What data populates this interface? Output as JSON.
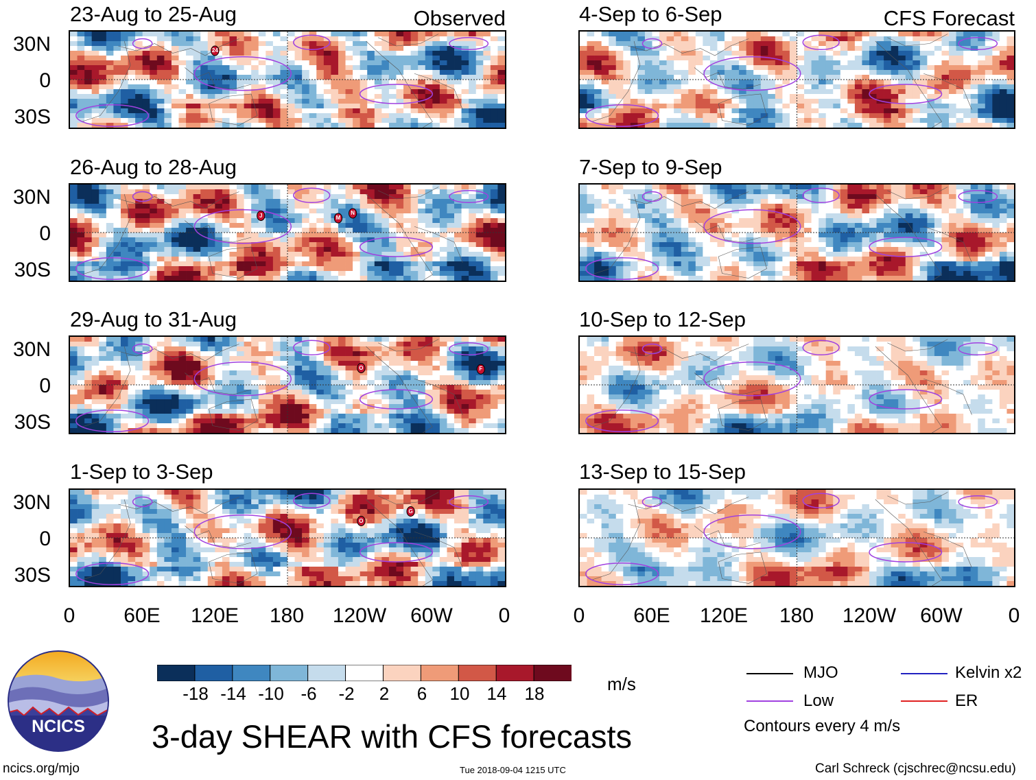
{
  "panels": [
    {
      "title": "23-Aug to 25-Aug",
      "label": "Observed",
      "storms": [
        {
          "name": "24",
          "lon": 120,
          "lat": 24
        }
      ]
    },
    {
      "title": "26-Aug to 28-Aug",
      "label": "",
      "storms": [
        {
          "name": "J",
          "lon": 158,
          "lat": 14
        },
        {
          "name": "M",
          "lon": 222,
          "lat": 12
        },
        {
          "name": "N",
          "lon": 234,
          "lat": 16
        }
      ]
    },
    {
      "title": "29-Aug to 31-Aug",
      "label": "",
      "storms": [
        {
          "name": "O",
          "lon": 241,
          "lat": 14
        },
        {
          "name": "F",
          "lon": 340,
          "lat": 13
        }
      ]
    },
    {
      "title": "1-Sep to 3-Sep",
      "label": "",
      "storms": [
        {
          "name": "O",
          "lon": 241,
          "lat": 14
        },
        {
          "name": "G",
          "lon": 282,
          "lat": 22
        }
      ]
    },
    {
      "title": "4-Sep to 6-Sep",
      "label": "CFS Forecast",
      "storms": []
    },
    {
      "title": "7-Sep to 9-Sep",
      "label": "",
      "storms": []
    },
    {
      "title": "10-Sep to 12-Sep",
      "label": "",
      "storms": []
    },
    {
      "title": "13-Sep to 15-Sep",
      "label": "",
      "storms": []
    }
  ],
  "axis": {
    "lat_ticks": [
      "30N",
      "0",
      "30S"
    ],
    "lon_ticks": [
      "0",
      "60E",
      "120E",
      "180",
      "120W",
      "60W",
      "0"
    ]
  },
  "colorbar": {
    "ticks": [
      "-18",
      "-14",
      "-10",
      "-6",
      "-2",
      "2",
      "6",
      "10",
      "14",
      "18"
    ],
    "colors": [
      "#0b2f5a",
      "#1f5fa3",
      "#3f87c0",
      "#7fb6d8",
      "#c5dcec",
      "#ffffff",
      "#fbd3bf",
      "#ef9b78",
      "#d25847",
      "#a8182b",
      "#6e0a1e"
    ],
    "unit": "m/s"
  },
  "legend": {
    "mjo": "MJO",
    "low": "Low",
    "kelvin": "Kelvin x2",
    "er": "ER",
    "contours": "Contours every 4 m/s",
    "mjo_color": "#000000",
    "low_color": "#a040e0",
    "kelvin_color": "#2020c0",
    "er_color": "#e02020"
  },
  "logo": {
    "text": "NCICS"
  },
  "title": "3-day SHEAR with CFS forecasts",
  "footer": {
    "left": "ncics.org/mjo",
    "center": "Tue 2018-09-04 1215 UTC",
    "right": "Carl Schreck (cjschrec@ncsu.edu)"
  },
  "chart_data": {
    "type": "heatmap",
    "variable": "3-day vertical wind shear anomaly (m/s) with CFS forecasts",
    "x_range": [
      0,
      360
    ],
    "y_range": [
      -40,
      40
    ],
    "panels": [
      "23-Aug to 25-Aug",
      "26-Aug to 28-Aug",
      "29-Aug to 31-Aug",
      "1-Sep to 3-Sep",
      "4-Sep to 6-Sep",
      "7-Sep to 9-Sep",
      "10-Sep to 12-Sep",
      "13-Sep to 15-Sep"
    ],
    "color_levels": [
      -18,
      -14,
      -10,
      -6,
      -2,
      2,
      6,
      10,
      14,
      18
    ],
    "contour_interval": 4
  }
}
